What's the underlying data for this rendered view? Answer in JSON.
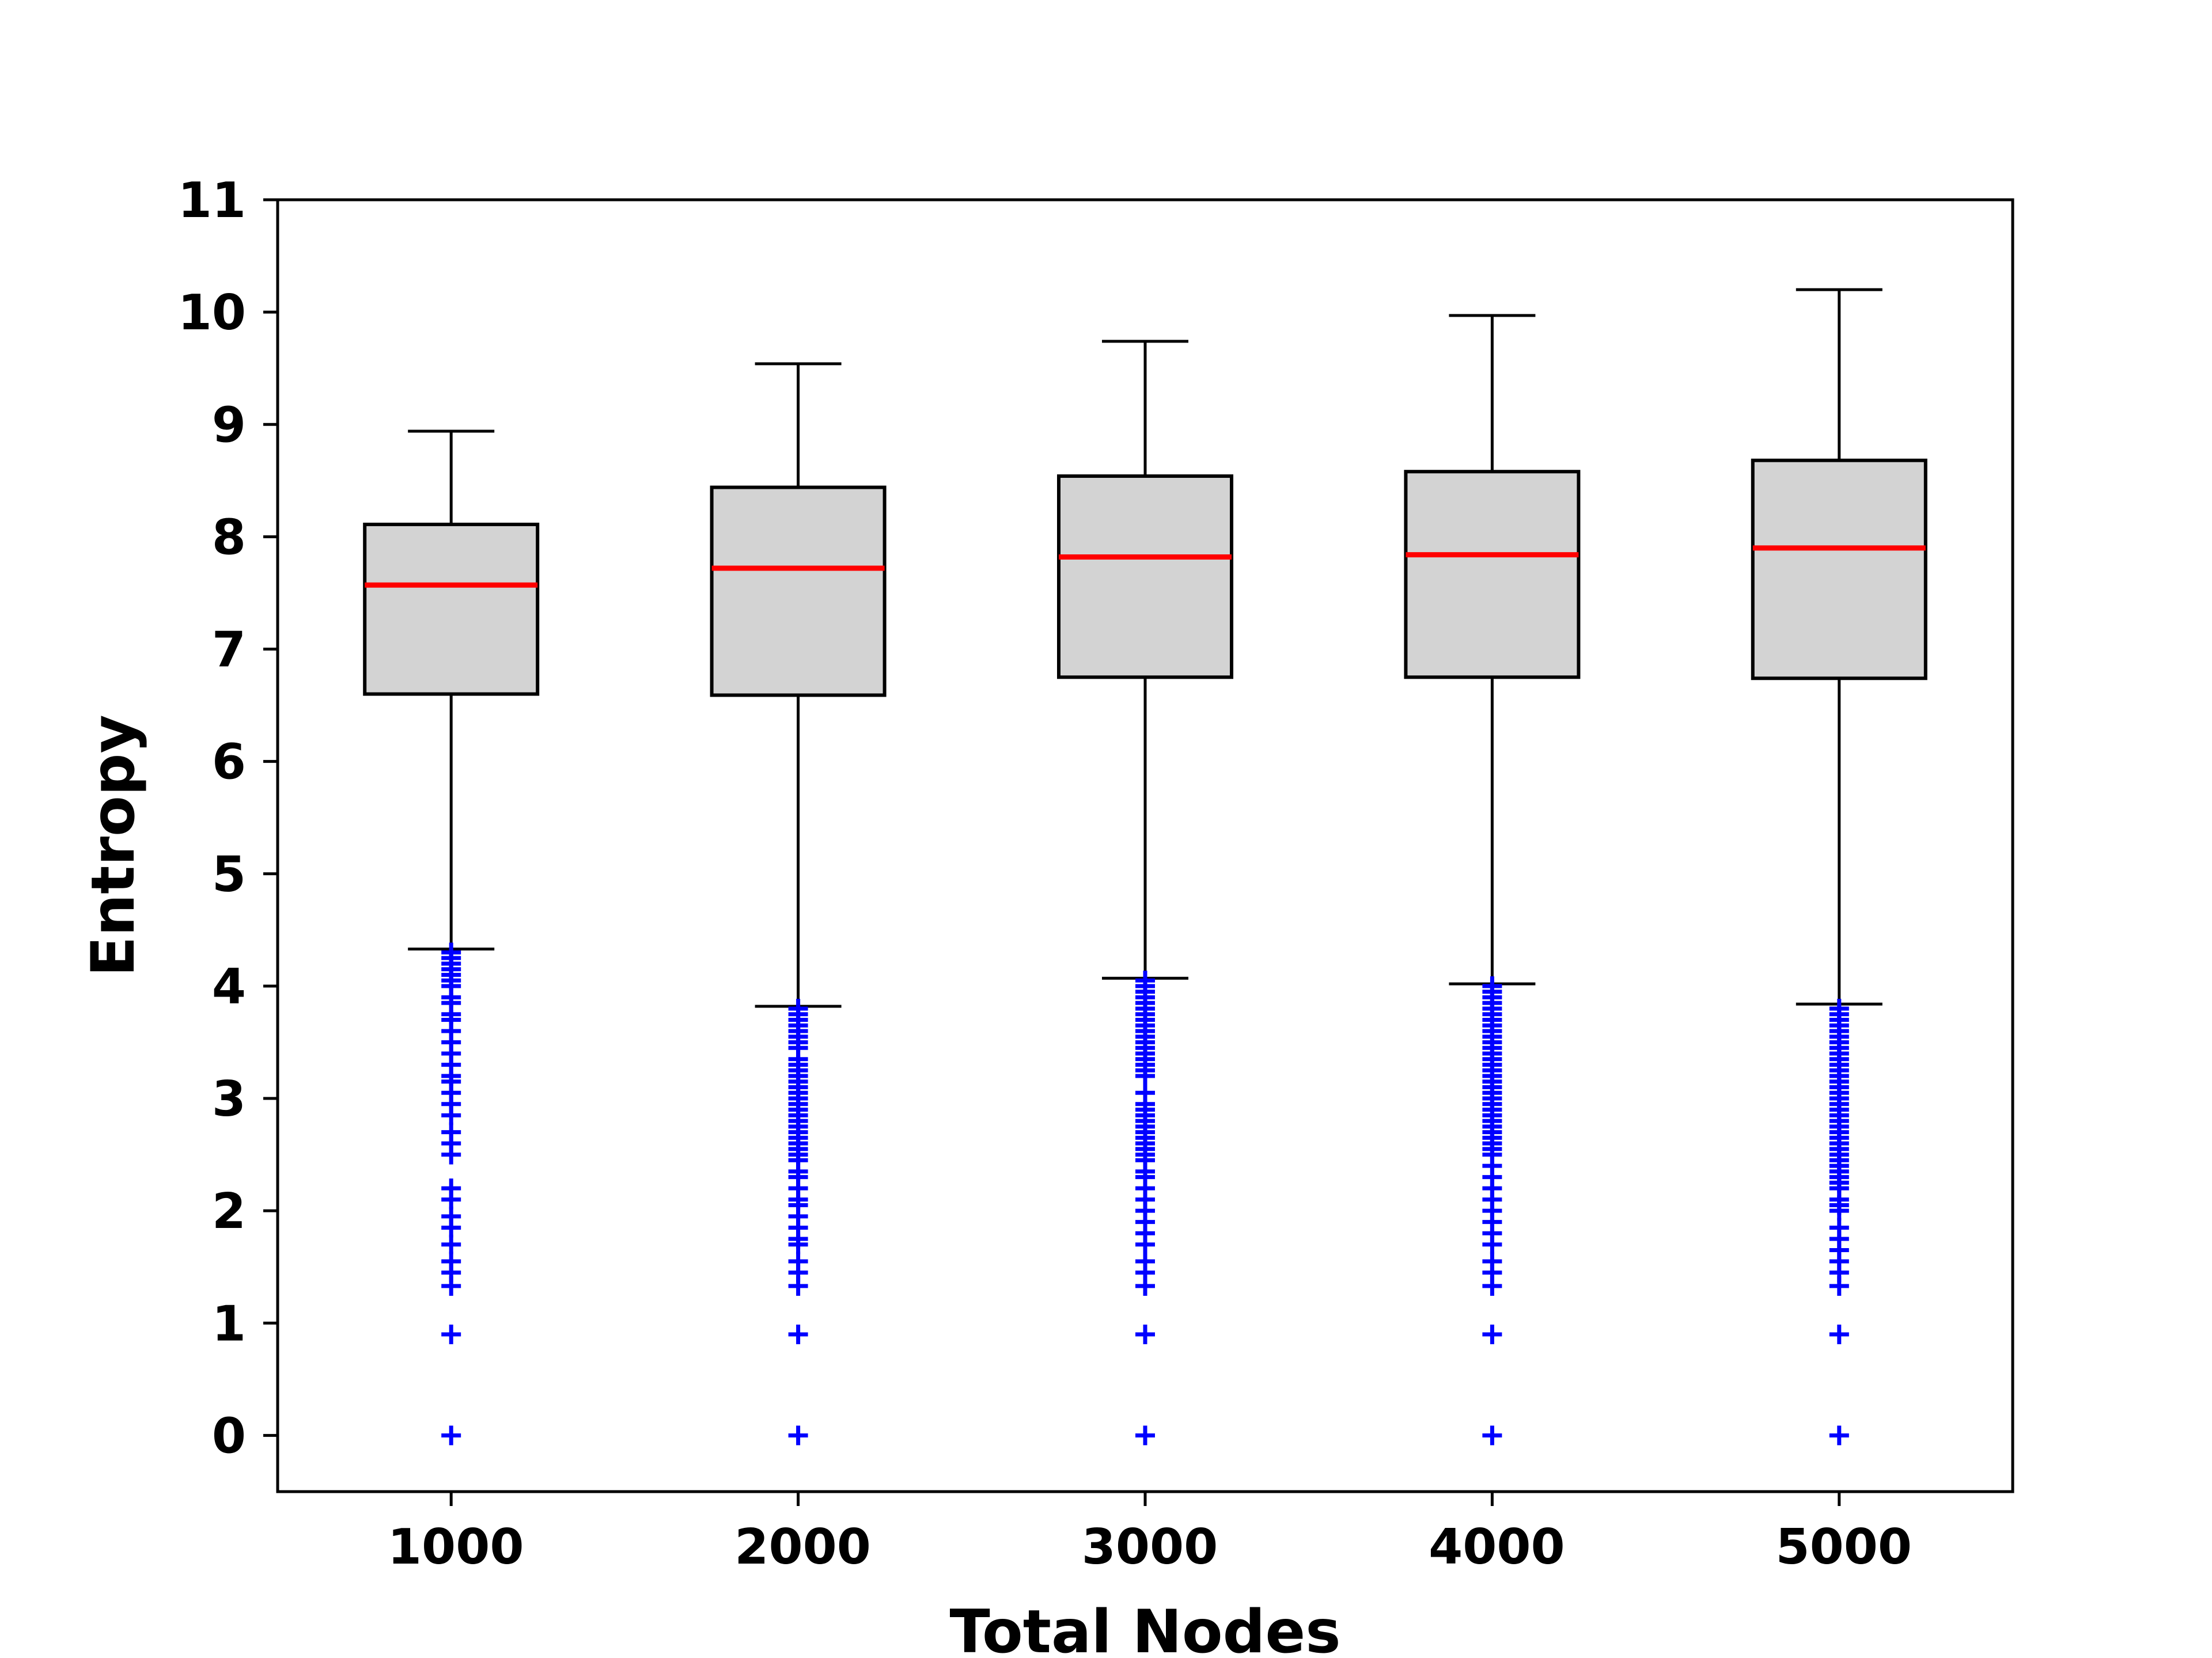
{
  "chart_data": {
    "type": "box",
    "xlabel": "Total Nodes",
    "ylabel": "Entropy",
    "categories": [
      "1000",
      "2000",
      "3000",
      "4000",
      "5000"
    ],
    "ylim": [
      -0.5,
      11
    ],
    "yticks": [
      0,
      1,
      2,
      3,
      4,
      5,
      6,
      7,
      8,
      9,
      10,
      11
    ],
    "grid": false,
    "colors": {
      "box_fill": "#d3d3d3",
      "median": "#ff0000",
      "outlier": "#0000ff",
      "line": "#000000"
    },
    "boxes": [
      {
        "category": "1000",
        "whisker_low": 4.33,
        "q1": 6.6,
        "median": 7.57,
        "q3": 8.11,
        "whisker_high": 8.94,
        "outliers": [
          0,
          0.9,
          1.33,
          1.45,
          1.55,
          1.7,
          1.85,
          1.95,
          2.1,
          2.2,
          2.5,
          2.6,
          2.7,
          2.85,
          2.95,
          3.05,
          3.15,
          3.2,
          3.3,
          3.4,
          3.5,
          3.6,
          3.7,
          3.75,
          3.85,
          3.9,
          4.0,
          4.05,
          4.1,
          4.15,
          4.2,
          4.25,
          4.3
        ]
      },
      {
        "category": "2000",
        "whisker_low": 3.82,
        "q1": 6.59,
        "median": 7.72,
        "q3": 8.44,
        "whisker_high": 9.54,
        "outliers": [
          0,
          0.9,
          1.33,
          1.45,
          1.55,
          1.7,
          1.75,
          1.85,
          1.95,
          2.05,
          2.1,
          2.2,
          2.3,
          2.35,
          2.45,
          2.5,
          2.55,
          2.6,
          2.65,
          2.7,
          2.75,
          2.8,
          2.85,
          2.9,
          2.95,
          3.0,
          3.05,
          3.1,
          3.15,
          3.2,
          3.25,
          3.3,
          3.35,
          3.45,
          3.5,
          3.55,
          3.6,
          3.65,
          3.7,
          3.75,
          3.8
        ]
      },
      {
        "category": "3000",
        "whisker_low": 4.07,
        "q1": 6.75,
        "median": 7.82,
        "q3": 8.54,
        "whisker_high": 9.74,
        "outliers": [
          0,
          0.9,
          1.33,
          1.45,
          1.55,
          1.7,
          1.8,
          1.9,
          2.0,
          2.1,
          2.2,
          2.3,
          2.35,
          2.45,
          2.5,
          2.55,
          2.6,
          2.65,
          2.7,
          2.75,
          2.8,
          2.85,
          2.9,
          2.95,
          3.05,
          3.2,
          3.25,
          3.3,
          3.35,
          3.4,
          3.45,
          3.5,
          3.55,
          3.6,
          3.65,
          3.7,
          3.75,
          3.8,
          3.85,
          3.9,
          3.95,
          4.0,
          4.05
        ]
      },
      {
        "category": "4000",
        "whisker_low": 4.02,
        "q1": 6.75,
        "median": 7.84,
        "q3": 8.58,
        "whisker_high": 9.97,
        "outliers": [
          0,
          0.9,
          1.33,
          1.45,
          1.55,
          1.7,
          1.8,
          1.9,
          2.0,
          2.1,
          2.2,
          2.3,
          2.4,
          2.5,
          2.55,
          2.6,
          2.65,
          2.7,
          2.75,
          2.8,
          2.85,
          2.9,
          2.95,
          3.0,
          3.05,
          3.1,
          3.15,
          3.2,
          3.25,
          3.3,
          3.35,
          3.4,
          3.45,
          3.5,
          3.55,
          3.6,
          3.65,
          3.7,
          3.75,
          3.8,
          3.85,
          3.9,
          3.95,
          4.0
        ]
      },
      {
        "category": "5000",
        "whisker_low": 3.84,
        "q1": 6.74,
        "median": 7.9,
        "q3": 8.68,
        "whisker_high": 10.2,
        "outliers": [
          0,
          0.9,
          1.33,
          1.45,
          1.55,
          1.65,
          1.75,
          1.85,
          2.0,
          2.05,
          2.1,
          2.2,
          2.25,
          2.3,
          2.35,
          2.4,
          2.45,
          2.5,
          2.55,
          2.6,
          2.65,
          2.7,
          2.75,
          2.8,
          2.85,
          2.9,
          2.95,
          3.0,
          3.05,
          3.1,
          3.15,
          3.2,
          3.25,
          3.3,
          3.35,
          3.4,
          3.45,
          3.5,
          3.55,
          3.6,
          3.65,
          3.7,
          3.75,
          3.8
        ]
      }
    ]
  }
}
